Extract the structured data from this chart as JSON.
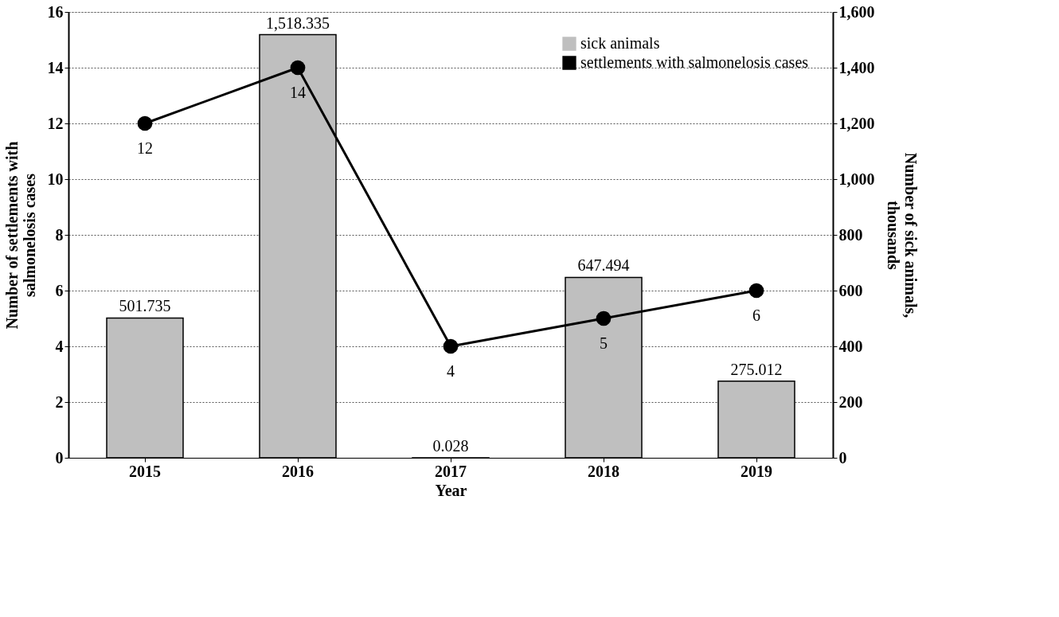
{
  "chart_data": {
    "type": "bar",
    "categories": [
      "2015",
      "2016",
      "2017",
      "2018",
      "2019"
    ],
    "xlabel": "Year",
    "ylabel": "Number of settlements with salmonelosis cases",
    "y2label": "Number of sick animals, thousands",
    "series": [
      {
        "name": "sick animals",
        "axis": "y2",
        "color": "#bfbfbf",
        "values": [
          501.735,
          1518.335,
          0.028,
          647.494,
          275.012
        ],
        "value_labels": [
          "501.735",
          "1,518.335",
          "0.028",
          "647.494",
          "275.012"
        ]
      },
      {
        "name": "settlements with salmonelosis cases",
        "type": "line",
        "color": "#000000",
        "values": [
          12,
          14,
          4,
          5,
          6
        ],
        "value_labels": [
          "12",
          "14",
          "4",
          "5",
          "6"
        ]
      }
    ],
    "ylim": [
      0,
      16
    ],
    "yticks": [
      0,
      2,
      4,
      6,
      8,
      10,
      12,
      14,
      16
    ],
    "y2lim": [
      0,
      1600
    ],
    "y2ticks": [
      0,
      200,
      400,
      600,
      800,
      {
        "value": 1000,
        "label": "1,000"
      },
      {
        "value": 1200,
        "label": "1,200"
      },
      {
        "value": 1400,
        "label": "1,400"
      },
      {
        "value": 1600,
        "label": "1,600"
      }
    ],
    "grid": "y",
    "legend": "top right",
    "marker": "circle",
    "line_style": "solid"
  }
}
